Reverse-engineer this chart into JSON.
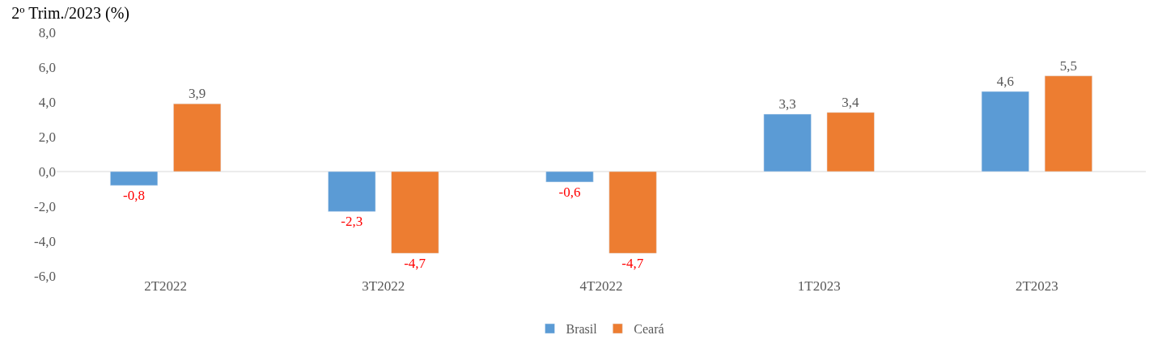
{
  "chart_data": {
    "type": "bar",
    "title": "2º Trim./2023 (%)",
    "categories": [
      "2T2022",
      "3T2022",
      "4T2022",
      "1T2023",
      "2T2023"
    ],
    "series": [
      {
        "name": "Brasil",
        "color": "#5b9bd5",
        "values": [
          -0.8,
          -2.3,
          -0.6,
          3.3,
          4.6
        ],
        "value_labels": [
          "-0,8",
          "-2,3",
          "-0,6",
          "3,3",
          "4,6"
        ]
      },
      {
        "name": "Ceará",
        "color": "#ed7d31",
        "values": [
          3.9,
          -4.7,
          -4.7,
          3.4,
          5.5
        ],
        "value_labels": [
          "3,9",
          "-4,7",
          "-4,7",
          "3,4",
          "5,5"
        ]
      }
    ],
    "ylim": [
      -6,
      8
    ],
    "yticks": [
      {
        "value": -6,
        "label": "-6,0"
      },
      {
        "value": -4,
        "label": "-4,0"
      },
      {
        "value": -2,
        "label": "-2,0"
      },
      {
        "value": 0,
        "label": "0,0"
      },
      {
        "value": 2,
        "label": "2,0"
      },
      {
        "value": 4,
        "label": "4,0"
      },
      {
        "value": 6,
        "label": "6,0"
      },
      {
        "value": 8,
        "label": "8,0"
      }
    ],
    "legend": "bottom"
  }
}
